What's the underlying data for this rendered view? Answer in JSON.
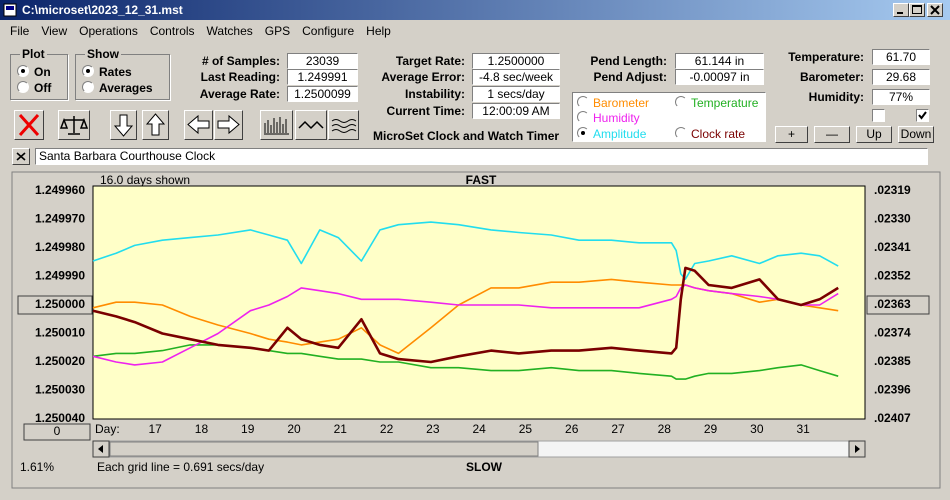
{
  "window": {
    "title": "C:\\microset\\2023_12_31.mst"
  },
  "menu": [
    "File",
    "View",
    "Operations",
    "Controls",
    "Watches",
    "GPS",
    "Configure",
    "Help"
  ],
  "plot_group": {
    "title": "Plot",
    "options": [
      "On",
      "Off"
    ],
    "selected": 0
  },
  "show_group": {
    "title": "Show",
    "options": [
      "Rates",
      "Averages"
    ],
    "selected": 0
  },
  "fields": [
    {
      "label": "# of Samples:",
      "value": "23039"
    },
    {
      "label": "Last Reading:",
      "value": "1.249991"
    },
    {
      "label": "Average Rate:",
      "value": "1.2500099"
    },
    {
      "label": "Target Rate:",
      "value": "1.2500000"
    },
    {
      "label": "Average Error:",
      "value": "-4.8 sec/week"
    },
    {
      "label": "Instability:",
      "value": "1 secs/day"
    },
    {
      "label": "Current Time:",
      "value": "12:00:09 AM"
    },
    {
      "label": "Pend Length:",
      "value": "61.144 in"
    },
    {
      "label": "Pend Adjust:",
      "value": "-0.00097 in"
    },
    {
      "label": "Temperature:",
      "value": "61.70"
    },
    {
      "label": "Barometer:",
      "value": "29.68"
    },
    {
      "label": "Humidity:",
      "value": "77%"
    }
  ],
  "app_name": "MicroSet Clock and Watch Timer",
  "buttons": [
    "+",
    "—",
    "Up",
    "Down"
  ],
  "checkboxes": [
    false,
    true
  ],
  "clock_name": "Santa Barbara Courthouse Clock",
  "chart_data": {
    "type": "line",
    "top_label": "FAST",
    "bottom_label": "SLOW",
    "days_shown": "16.0 days shown",
    "grid_note": "Each grid line = 0.691 secs/day",
    "x_label": "Day:",
    "scroll_value": "0",
    "percent": "1.61%",
    "background": "#ffffc8",
    "selected_series": 3,
    "y_inverted": true,
    "grid": false,
    "xlim": [
      15.7,
      32.38
    ],
    "xticks": [
      17,
      18,
      19,
      20,
      21,
      22,
      23,
      24,
      25,
      26,
      27,
      28,
      29,
      30,
      31
    ],
    "ylim": [
      1.24996,
      1.25004
    ],
    "yticks": [
      {
        "value": 1.24996,
        "label": "1.249960"
      },
      {
        "value": 1.24997,
        "label": "1.249970"
      },
      {
        "value": 1.24998,
        "label": "1.249980"
      },
      {
        "value": 1.24999,
        "label": "1.249990"
      },
      {
        "value": 1.25,
        "label": "1.250000"
      },
      {
        "value": 1.25001,
        "label": "1.250010"
      },
      {
        "value": 1.25002,
        "label": "1.250020"
      },
      {
        "value": 1.25003,
        "label": "1.250030"
      },
      {
        "value": 1.25004,
        "label": "1.250040"
      }
    ],
    "y2lim": [
      0.02319,
      0.02407
    ],
    "y2ticks": [
      {
        "value": 0.02319,
        "label": ".02319"
      },
      {
        "value": 0.0233,
        "label": ".02330"
      },
      {
        "value": 0.02341,
        "label": ".02341"
      },
      {
        "value": 0.02352,
        "label": ".02352"
      },
      {
        "value": 0.02363,
        "label": ".02363"
      },
      {
        "value": 0.02374,
        "label": ".02374"
      },
      {
        "value": 0.02385,
        "label": ".02385"
      },
      {
        "value": 0.02396,
        "label": ".02396"
      },
      {
        "value": 0.02407,
        "label": ".02407"
      }
    ],
    "x": [
      15.7,
      16.2,
      16.6,
      17.2,
      17.8,
      18.4,
      19.1,
      19.5,
      19.9,
      20.2,
      20.6,
      21.0,
      21.5,
      21.9,
      22.3,
      23.0,
      23.6,
      24.3,
      24.9,
      25.6,
      26.2,
      26.9,
      27.5,
      28.2,
      28.3,
      28.4,
      28.5,
      28.7,
      29.0,
      29.5,
      30.1,
      30.5,
      31.0,
      31.4,
      31.8
    ],
    "series": [
      {
        "name": "Barometer",
        "color": "#ff8c00",
        "values": [
          1.250001,
          1.249999,
          1.249999,
          1.25,
          1.250004,
          1.250007,
          1.25001,
          1.250012,
          1.250013,
          1.250014,
          1.250013,
          1.250012,
          1.250008,
          1.250014,
          1.250017,
          1.250008,
          1.25,
          1.249994,
          1.249994,
          1.249992,
          1.249992,
          1.249991,
          1.249992,
          1.249993,
          1.249993,
          1.249993,
          1.249993,
          1.249994,
          1.249995,
          1.249996,
          1.249999,
          1.249998,
          1.25,
          1.250001,
          1.250002
        ]
      },
      {
        "name": "Temperature",
        "color": "#22b022",
        "values": [
          1.250018,
          1.250017,
          1.250017,
          1.250016,
          1.250014,
          1.250014,
          1.250015,
          1.250016,
          1.250017,
          1.250017,
          1.250018,
          1.250019,
          1.250019,
          1.25002,
          1.25002,
          1.250022,
          1.250022,
          1.250023,
          1.250023,
          1.250022,
          1.250023,
          1.250023,
          1.250024,
          1.250025,
          1.250026,
          1.250026,
          1.250026,
          1.250025,
          1.250024,
          1.250024,
          1.250023,
          1.250022,
          1.250021,
          1.250023,
          1.250025
        ]
      },
      {
        "name": "Humidity",
        "color": "#ee22ee",
        "values": [
          1.250018,
          1.25002,
          1.250021,
          1.25002,
          1.250015,
          1.25001,
          1.250002,
          1.25,
          1.249997,
          1.249994,
          1.249995,
          1.249996,
          1.249998,
          1.249998,
          1.249998,
          1.249999,
          1.25,
          1.25,
          1.25,
          1.250001,
          1.250001,
          1.250001,
          1.250001,
          1.249998,
          1.249997,
          1.249994,
          1.249993,
          1.249994,
          1.249995,
          1.249996,
          1.249997,
          1.249998,
          1.25,
          1.25,
          1.249996
        ]
      },
      {
        "name": "Amplitude",
        "color": "#22ddee",
        "axis": "y2",
        "values": [
          0.02346,
          0.02343,
          0.0234,
          0.02338,
          0.02337,
          0.02336,
          0.02334,
          0.02336,
          0.02338,
          0.02347,
          0.02334,
          0.02337,
          0.02346,
          0.02334,
          0.02332,
          0.02331,
          0.02332,
          0.02334,
          0.02335,
          0.02336,
          0.02338,
          0.02338,
          0.02339,
          0.02339,
          0.02342,
          0.02351,
          0.02353,
          0.02347,
          0.02346,
          0.02344,
          0.02347,
          0.02344,
          0.02343,
          0.02344,
          0.02348
        ]
      },
      {
        "name": "Clock rate",
        "color": "#7a0000",
        "values": [
          1.250002,
          1.250004,
          1.250006,
          1.25001,
          1.250012,
          1.250014,
          1.250015,
          1.250016,
          1.250008,
          1.250012,
          1.250014,
          1.250015,
          1.250005,
          1.250017,
          1.250019,
          1.25002,
          1.250018,
          1.250016,
          1.250017,
          1.250016,
          1.250016,
          1.250015,
          1.250016,
          1.250017,
          1.250015,
          1.249998,
          1.249987,
          1.249988,
          1.249993,
          1.249994,
          1.249991,
          1.249998,
          1.25,
          1.249998,
          1.249994
        ]
      }
    ]
  }
}
